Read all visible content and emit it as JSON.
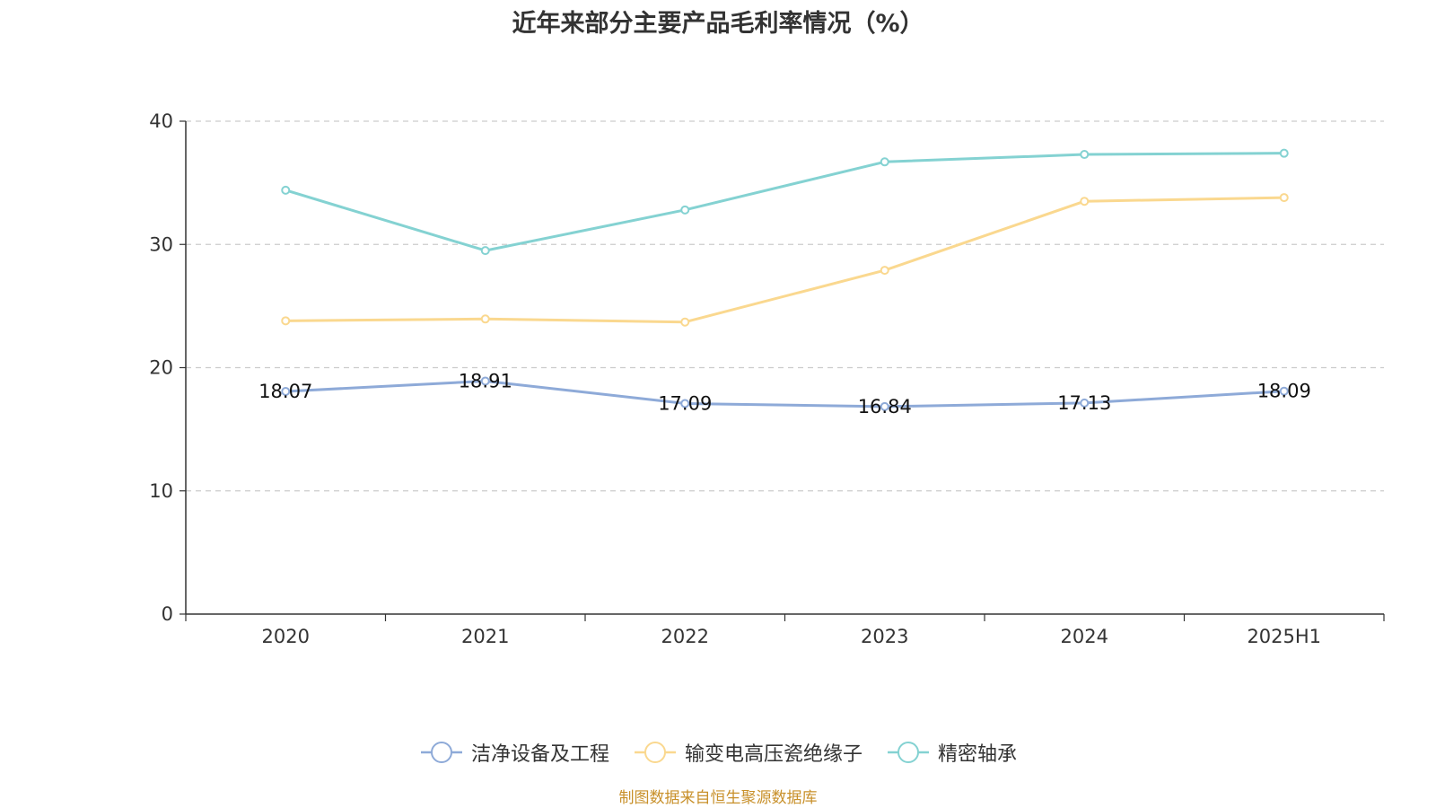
{
  "chart_data": {
    "type": "line",
    "title": "近年来部分主要产品毛利率情况（%）",
    "categories": [
      "2020",
      "2021",
      "2022",
      "2023",
      "2024",
      "2025H1"
    ],
    "ylim": [
      0,
      40
    ],
    "yticks": [
      0,
      10,
      20,
      30,
      40
    ],
    "grid": true,
    "legend_position": "bottom",
    "series": [
      {
        "name": "洁净设备及工程",
        "color": "#8eaad8",
        "values": [
          18.07,
          18.91,
          17.09,
          16.84,
          17.13,
          18.09
        ],
        "labels": [
          "18.07",
          "18.91",
          "17.09",
          "16.84",
          "17.13",
          "18.09"
        ]
      },
      {
        "name": "输变电高压瓷绝缘子",
        "color": "#fad88f",
        "values": [
          23.8,
          23.95,
          23.7,
          27.9,
          33.5,
          33.8
        ]
      },
      {
        "name": "精密轴承",
        "color": "#84d2d2",
        "values": [
          34.4,
          29.5,
          32.8,
          36.7,
          37.3,
          37.4
        ]
      }
    ]
  },
  "footer": {
    "source": "制图数据来自恒生聚源数据库"
  }
}
